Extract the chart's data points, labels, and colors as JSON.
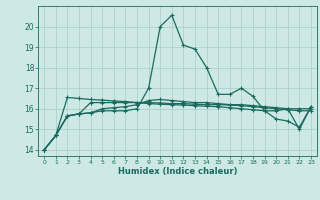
{
  "title": "",
  "xlabel": "Humidex (Indice chaleur)",
  "bg_color": "#cde8e5",
  "grid_color": "#a8ceca",
  "line_color": "#1a6b5e",
  "xlim": [
    -0.5,
    23.5
  ],
  "ylim": [
    13.7,
    21.0
  ],
  "yticks": [
    14,
    15,
    16,
    17,
    18,
    19,
    20
  ],
  "xticks": [
    0,
    1,
    2,
    3,
    4,
    5,
    6,
    7,
    8,
    9,
    10,
    11,
    12,
    13,
    14,
    15,
    16,
    17,
    18,
    19,
    20,
    21,
    22,
    23
  ],
  "lines": [
    [
      14.0,
      14.7,
      15.65,
      15.75,
      15.8,
      15.9,
      15.9,
      15.9,
      16.0,
      17.0,
      20.0,
      20.55,
      19.1,
      18.9,
      18.0,
      16.7,
      16.7,
      17.0,
      16.6,
      15.9,
      15.9,
      16.0,
      15.0,
      16.1
    ],
    [
      14.0,
      14.7,
      15.65,
      15.75,
      15.8,
      16.0,
      16.05,
      16.1,
      16.2,
      16.4,
      16.45,
      16.4,
      16.35,
      16.3,
      16.3,
      16.25,
      16.2,
      16.2,
      16.15,
      16.1,
      16.05,
      16.0,
      16.0,
      16.0
    ],
    [
      14.0,
      14.7,
      15.65,
      15.75,
      16.3,
      16.3,
      16.3,
      16.3,
      16.3,
      16.3,
      16.28,
      16.25,
      16.25,
      16.22,
      16.2,
      16.2,
      16.18,
      16.15,
      16.1,
      16.05,
      16.0,
      15.95,
      15.9,
      15.9
    ],
    [
      14.0,
      14.7,
      16.55,
      16.5,
      16.45,
      16.42,
      16.38,
      16.35,
      16.3,
      16.25,
      16.22,
      16.2,
      16.18,
      16.15,
      16.12,
      16.1,
      16.05,
      16.0,
      15.95,
      15.9,
      15.5,
      15.4,
      15.1,
      16.1
    ]
  ]
}
